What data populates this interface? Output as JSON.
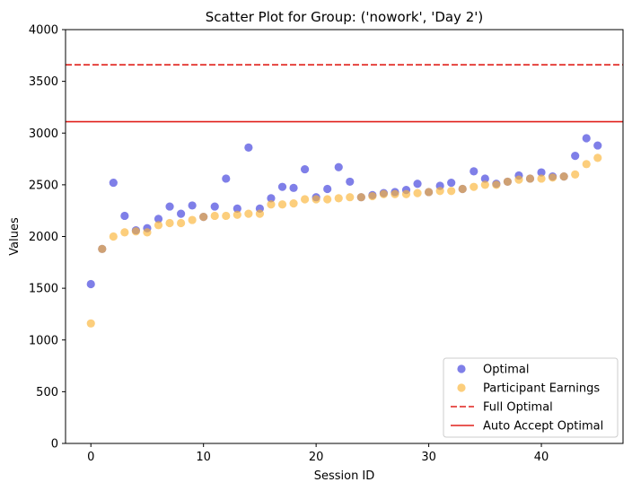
{
  "chart_data": {
    "type": "scatter",
    "title": "Scatter Plot for Group: ('nowork', 'Day 2')",
    "xlabel": "Session ID",
    "ylabel": "Values",
    "xlim": [
      -2.25,
      47.25
    ],
    "ylim": [
      0,
      4000
    ],
    "xticks": [
      0,
      10,
      20,
      30,
      40
    ],
    "yticks": [
      0,
      500,
      1000,
      1500,
      2000,
      2500,
      3000,
      3500,
      4000
    ],
    "grid": false,
    "legend_position": "bottom-right",
    "series": [
      {
        "name": "Optimal",
        "kind": "points",
        "color": "#3b3bdc",
        "x": [
          0,
          1,
          2,
          3,
          4,
          5,
          6,
          7,
          8,
          9,
          10,
          11,
          12,
          13,
          14,
          15,
          16,
          17,
          18,
          19,
          20,
          21,
          22,
          23,
          24,
          25,
          26,
          27,
          28,
          29,
          30,
          31,
          32,
          33,
          34,
          35,
          36,
          37,
          38,
          39,
          40,
          41,
          42,
          43,
          44,
          45
        ],
        "y": [
          1540,
          1880,
          2520,
          2200,
          2060,
          2080,
          2170,
          2290,
          2220,
          2300,
          2190,
          2290,
          2560,
          2270,
          2860,
          2270,
          2370,
          2480,
          2470,
          2650,
          2380,
          2460,
          2670,
          2530,
          2380,
          2400,
          2420,
          2430,
          2450,
          2510,
          2430,
          2490,
          2520,
          2460,
          2630,
          2560,
          2510,
          2530,
          2590,
          2560,
          2620,
          2580,
          2580,
          2780,
          2950,
          2880
        ]
      },
      {
        "name": "Participant Earnings",
        "kind": "points",
        "color": "#fbb436",
        "x": [
          0,
          1,
          2,
          3,
          4,
          5,
          6,
          7,
          8,
          9,
          10,
          11,
          12,
          13,
          14,
          15,
          16,
          17,
          18,
          19,
          20,
          21,
          22,
          23,
          24,
          25,
          26,
          27,
          28,
          29,
          30,
          31,
          32,
          33,
          34,
          35,
          36,
          37,
          38,
          39,
          40,
          41,
          42,
          43,
          44,
          45
        ],
        "y": [
          1160,
          1880,
          2000,
          2040,
          2050,
          2040,
          2110,
          2130,
          2130,
          2160,
          2190,
          2200,
          2200,
          2210,
          2220,
          2220,
          2310,
          2310,
          2320,
          2360,
          2360,
          2360,
          2370,
          2380,
          2380,
          2390,
          2410,
          2410,
          2410,
          2420,
          2430,
          2440,
          2440,
          2460,
          2480,
          2500,
          2500,
          2530,
          2550,
          2560,
          2560,
          2570,
          2580,
          2600,
          2700,
          2760
        ]
      },
      {
        "name": "Full Optimal",
        "kind": "hline",
        "style": "dashed",
        "color": "#e0201b",
        "y": 3660
      },
      {
        "name": "Auto Accept Optimal",
        "kind": "hline",
        "style": "solid",
        "color": "#e0201b",
        "y": 3110
      }
    ]
  }
}
